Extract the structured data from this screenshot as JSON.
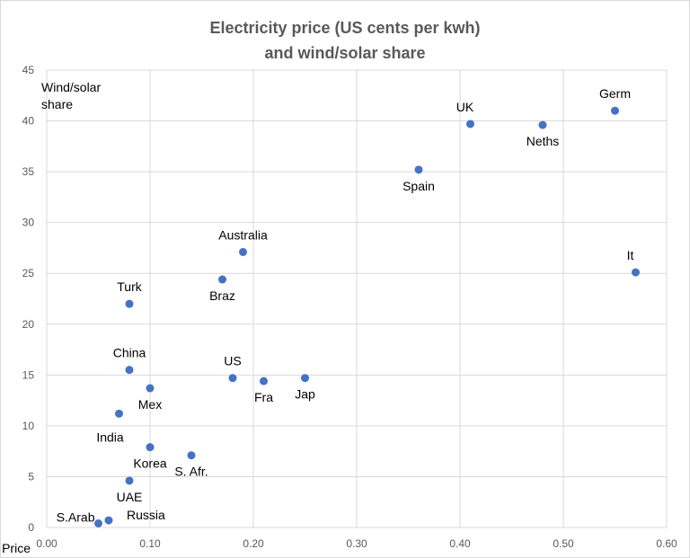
{
  "chart_data": {
    "type": "scatter",
    "title": [
      "Electricity price (US cents per kwh)",
      "and wind/solar share"
    ],
    "xlabel": "Price",
    "ylabel": [
      "Wind/solar",
      "share"
    ],
    "xlim": [
      0,
      0.6
    ],
    "ylim": [
      0,
      45
    ],
    "xticks": [
      "0.00",
      "0.10",
      "0.20",
      "0.30",
      "0.40",
      "0.50",
      "0.60"
    ],
    "yticks": [
      "0",
      "5",
      "10",
      "15",
      "20",
      "25",
      "30",
      "35",
      "40",
      "45"
    ],
    "grid": true,
    "marker_color": "#4472C4",
    "points": [
      {
        "label": "Germ",
        "x": 0.55,
        "y": 41.0,
        "pos": "above"
      },
      {
        "label": "UK",
        "x": 0.41,
        "y": 39.7,
        "pos": "above-left"
      },
      {
        "label": "Neths",
        "x": 0.48,
        "y": 39.6,
        "pos": "below"
      },
      {
        "label": "Spain",
        "x": 0.36,
        "y": 35.2,
        "pos": "below"
      },
      {
        "label": "It",
        "x": 0.57,
        "y": 25.1,
        "pos": "above-left"
      },
      {
        "label": "Australia",
        "x": 0.19,
        "y": 27.1,
        "pos": "above"
      },
      {
        "label": "Braz",
        "x": 0.17,
        "y": 24.4,
        "pos": "below"
      },
      {
        "label": "Turk",
        "x": 0.08,
        "y": 22.0,
        "pos": "above"
      },
      {
        "label": "China",
        "x": 0.08,
        "y": 15.5,
        "pos": "above"
      },
      {
        "label": "US",
        "x": 0.18,
        "y": 14.7,
        "pos": "above"
      },
      {
        "label": "Fra",
        "x": 0.21,
        "y": 14.4,
        "pos": "below"
      },
      {
        "label": "Jap",
        "x": 0.25,
        "y": 14.7,
        "pos": "below"
      },
      {
        "label": "Mex",
        "x": 0.1,
        "y": 13.7,
        "pos": "below"
      },
      {
        "label": "India",
        "x": 0.07,
        "y": 11.2,
        "pos": "below-left"
      },
      {
        "label": "Korea",
        "x": 0.1,
        "y": 7.9,
        "pos": "below"
      },
      {
        "label": "S. Afr.",
        "x": 0.14,
        "y": 7.1,
        "pos": "below"
      },
      {
        "label": "UAE",
        "x": 0.08,
        "y": 4.6,
        "pos": "below"
      },
      {
        "label": "S.Arab",
        "x": 0.05,
        "y": 0.4,
        "pos": "left"
      },
      {
        "label": "Russia",
        "x": 0.06,
        "y": 0.7,
        "pos": "right"
      }
    ]
  }
}
